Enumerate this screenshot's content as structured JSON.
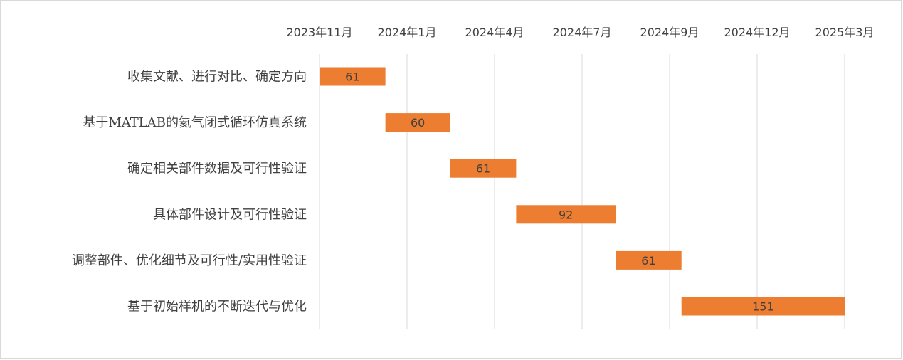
{
  "chart_data": {
    "type": "bar",
    "orientation": "horizontal",
    "stacked": true,
    "title": "",
    "xlabel": "",
    "ylabel": "",
    "grid": true,
    "legend": "none",
    "x_axis_position": "top",
    "bar_color": "#ED7D31",
    "grid_color": "#D9D9D9",
    "x_ticks": [
      "2023年11月",
      "2024年1月",
      "2024年4月",
      "2024年7月",
      "2024年9月",
      "2024年12月",
      "2025年3月"
    ],
    "categories": [
      "收集文献、进行对比、确定方向",
      "基于MATLAB的氦气闭式循环仿真系统",
      "确定相关部件数据及可行性验证",
      "具体部件设计及可行性验证",
      "调整部件、优化细节及可行性/实用性验证",
      "基于初始样机的不断迭代与优化"
    ],
    "start_offsets": [
      0,
      61,
      121,
      182,
      274,
      335
    ],
    "values": [
      61,
      60,
      61,
      92,
      61,
      151
    ],
    "xlim": [
      0,
      486
    ]
  }
}
